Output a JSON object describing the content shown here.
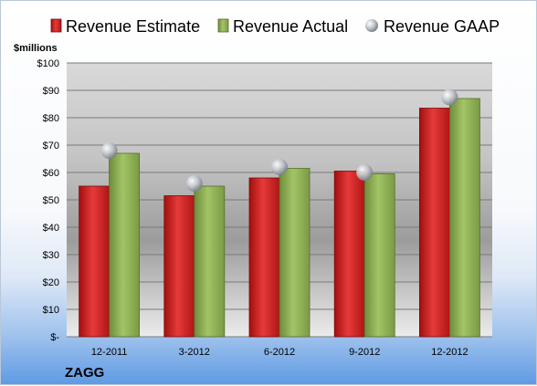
{
  "chart_data": {
    "type": "bar",
    "categories": [
      "12-2011",
      "3-2012",
      "6-2012",
      "9-2012",
      "12-2012"
    ],
    "series": [
      {
        "name": "Revenue Estimate",
        "kind": "bar",
        "color": "#cc1a1a",
        "values": [
          55,
          51.5,
          58,
          60.5,
          83.5
        ]
      },
      {
        "name": "Revenue Actual",
        "kind": "bar",
        "color": "#8aab52",
        "values": [
          67,
          55,
          61.5,
          59.5,
          87
        ]
      },
      {
        "name": "Revenue GAAP",
        "kind": "marker",
        "color": "#b8bcc4",
        "values": [
          68,
          56,
          62,
          60,
          87.5
        ]
      }
    ],
    "ylabel": "$millions",
    "ylim": [
      0,
      100
    ],
    "yticks": [
      0,
      10,
      20,
      30,
      40,
      50,
      60,
      70,
      80,
      90,
      100
    ],
    "ytick_labels": [
      "$-",
      "$10",
      "$20",
      "$30",
      "$40",
      "$50",
      "$60",
      "$70",
      "$80",
      "$90",
      "$100"
    ],
    "grid": true,
    "legend_position": "top",
    "company": "ZAGG"
  }
}
